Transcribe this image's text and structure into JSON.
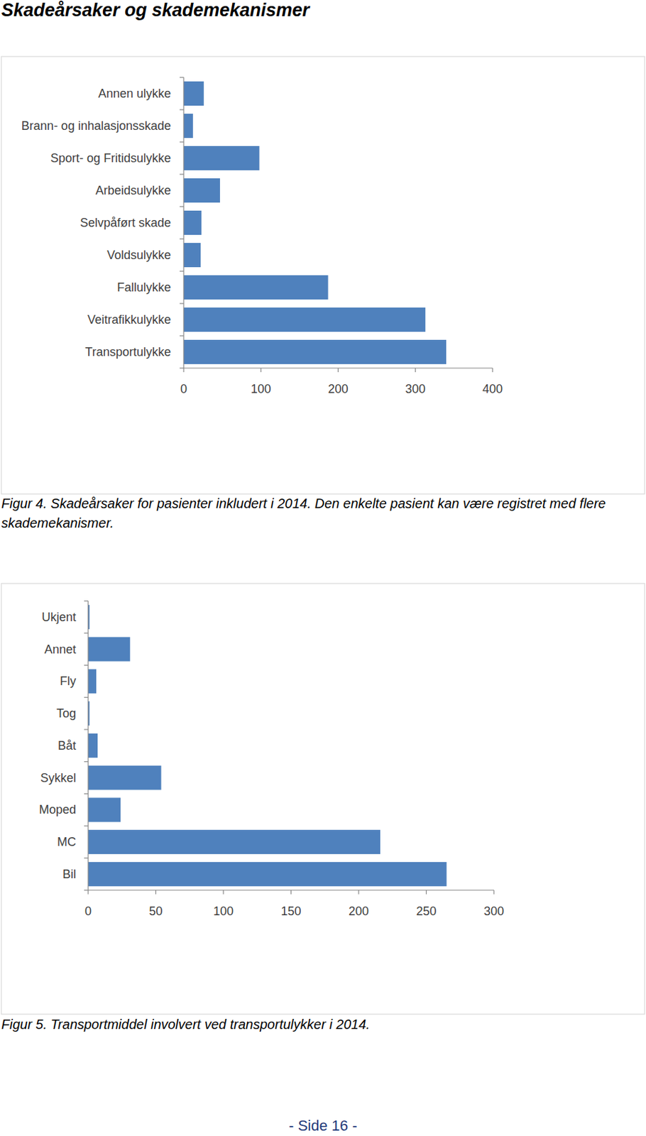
{
  "heading": "Skadeårsaker og skademekanismer",
  "page_number": "- Side 16 -",
  "chart_data": [
    {
      "type": "bar",
      "orientation": "horizontal",
      "title": "Figur 4. Skadeårsaker for pasienter inkludert i 2014. Den enkelte pasient kan være registret med flere skademekanismer.",
      "categories": [
        "Annen ulykke",
        "Brann- og inhalasjonsskade",
        "Sport- og Fritidsulykke",
        "Arbeidsulykke",
        "Selvpåført skade",
        "Voldsulykke",
        "Fallulykke",
        "Veitrafikkulykke",
        "Transportulykke"
      ],
      "values": [
        26,
        12,
        98,
        47,
        23,
        22,
        187,
        313,
        340
      ],
      "color": "#4f81bd",
      "xlim": [
        0,
        400
      ],
      "xticks": [
        0,
        100,
        200,
        300,
        400
      ],
      "grid": false
    },
    {
      "type": "bar",
      "orientation": "horizontal",
      "title": "Figur 5. Transportmiddel involvert ved transportulykker i 2014.",
      "categories": [
        "Ukjent",
        "Annet",
        "Fly",
        "Tog",
        "Båt",
        "Sykkel",
        "Moped",
        "MC",
        "Bil"
      ],
      "values": [
        1,
        31,
        6,
        1,
        7,
        54,
        24,
        216,
        265
      ],
      "color": "#4f81bd",
      "xlim": [
        0,
        300
      ],
      "xticks": [
        0,
        50,
        100,
        150,
        200,
        250,
        300
      ],
      "grid": false
    }
  ]
}
